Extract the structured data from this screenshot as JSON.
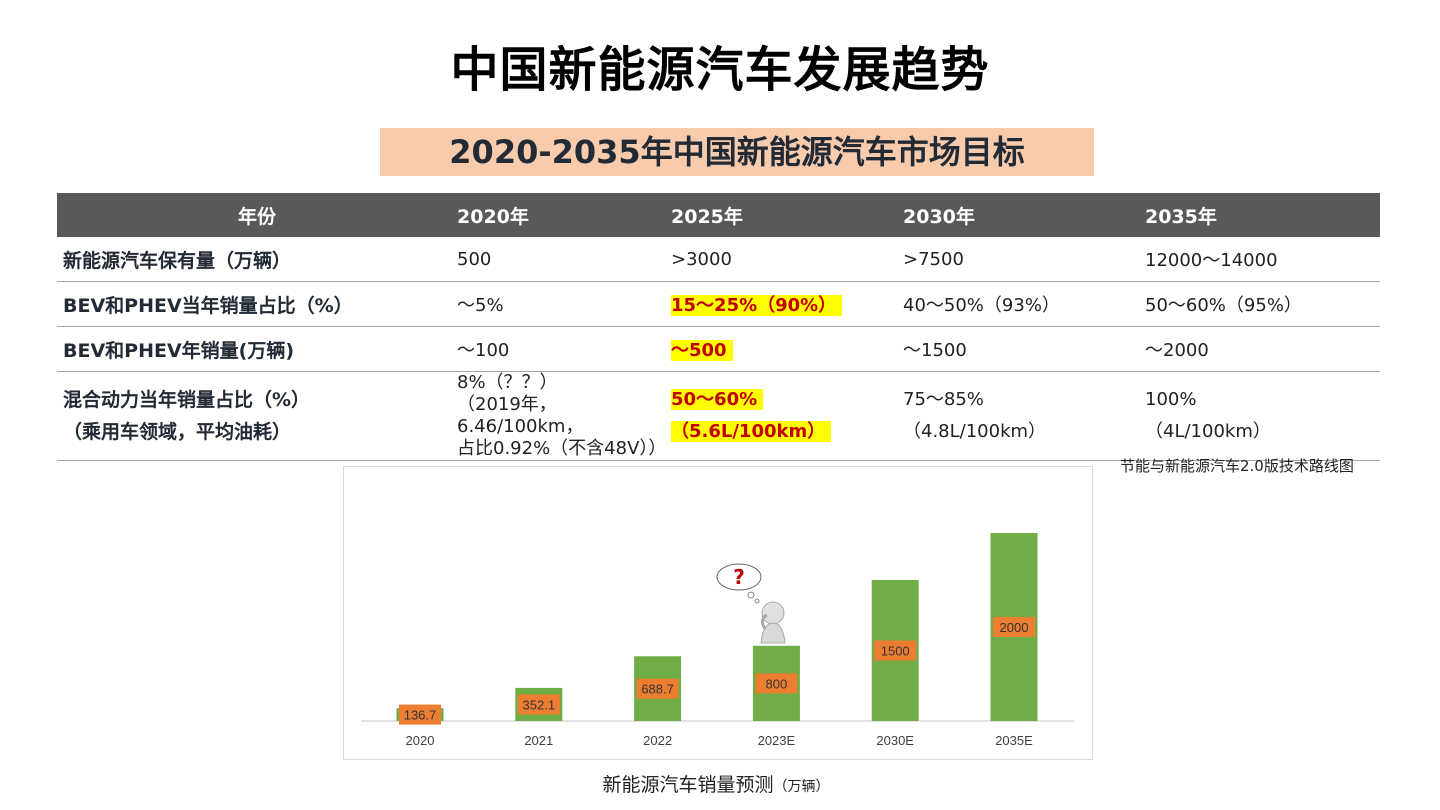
{
  "title": "中国新能源汽车发展趋势",
  "subtitle": "2020-2035年中国新能源汽车市场目标",
  "table": {
    "headers": [
      "年份",
      "2020年",
      "2025年",
      "2030年",
      "2035年"
    ],
    "rows": [
      {
        "label": "新能源汽车保有量（万辆）",
        "cells": [
          "500",
          ">3000",
          ">7500",
          "12000～14000"
        ]
      },
      {
        "label": "BEV和PHEV当年销量占比（%）",
        "cells": [
          "～5%",
          "15～25%（90%）",
          "40～50%（93%）",
          "50～60%（95%）"
        ]
      },
      {
        "label": "BEV和PHEV年销量(万辆)",
        "cells": [
          "～100",
          "～500",
          "～1500",
          "～2000"
        ]
      },
      {
        "label_line1": "混合动力当年销量占比（%）",
        "label_line2": "（乘用车领域，平均油耗）",
        "c2020_line1": "8%（？？）",
        "c2020_line2": "（2019年，6.46/100km，",
        "c2020_line3": "占比0.92%（不含48V））",
        "c2025_line1": "50～60%",
        "c2025_line2": "（5.6L/100km）",
        "c2030_line1": "75～85%",
        "c2030_line2": "（4.8L/100km）",
        "c2035_line1": "100%",
        "c2035_line2": "（4L/100km）"
      }
    ]
  },
  "source": "节能与新能源汽车2.0版技术路线图",
  "chart_caption": "新能源汽车销量预测",
  "chart_caption_unit": "（万辆）",
  "chart_data": {
    "type": "bar",
    "categories": [
      "2020",
      "2021",
      "2022",
      "2023E",
      "2030E",
      "2035E"
    ],
    "values": [
      136.7,
      352.1,
      688.7,
      800,
      1500,
      2000
    ],
    "title": "新能源汽车销量预测",
    "unit": "（万辆）",
    "ylim": [
      0,
      2000
    ],
    "grid": false,
    "bar_color": "#70ad47",
    "label_bg_color": "#ed7d31"
  },
  "colors": {
    "header_bg": "#595959",
    "banner_bg": "#f8cbad",
    "highlight_bg": "#ffff00",
    "highlight_text": "#c00000",
    "bar": "#70ad47",
    "data_label_bg": "#ed7d31"
  },
  "decorations": {
    "thinking_figure_icon": "thinking-person-with-question-mark"
  }
}
